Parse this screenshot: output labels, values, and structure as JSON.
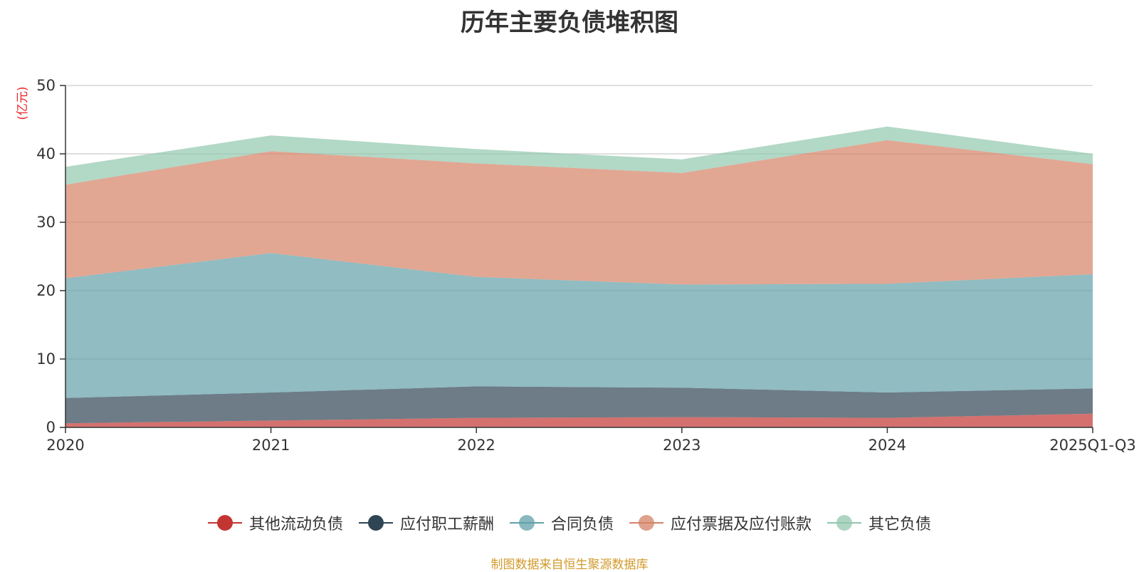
{
  "chart_data": {
    "type": "area",
    "stacked": true,
    "title": "历年主要负债堆积图",
    "ylabel": "(亿元)",
    "xlabel": "",
    "categories": [
      "2020",
      "2021",
      "2022",
      "2023",
      "2024",
      "2025Q1-Q3"
    ],
    "ylim": [
      0,
      50
    ],
    "yticks": [
      0,
      10,
      20,
      30,
      40,
      50
    ],
    "grid": true,
    "legend_position": "bottom",
    "series": [
      {
        "name": "其他流动负债",
        "color": "#c23531",
        "values": [
          0.6,
          1.0,
          1.4,
          1.5,
          1.4,
          2.0
        ]
      },
      {
        "name": "应付职工薪酬",
        "color": "#2f4554",
        "values": [
          3.7,
          4.1,
          4.6,
          4.3,
          3.7,
          3.7
        ]
      },
      {
        "name": "合同负债",
        "color": "#61a0a8",
        "values": [
          17.5,
          20.4,
          16.0,
          15.1,
          15.9,
          16.7
        ]
      },
      {
        "name": "应付票据及应付账款",
        "color": "#d48265",
        "values": [
          13.7,
          14.9,
          16.6,
          16.3,
          21.0,
          16.1
        ]
      },
      {
        "name": "其它负债",
        "color": "#91c7ae",
        "values": [
          2.6,
          2.3,
          2.1,
          2.0,
          2.0,
          1.5
        ]
      }
    ],
    "source_note": "制图数据来自恒生聚源数据库"
  }
}
